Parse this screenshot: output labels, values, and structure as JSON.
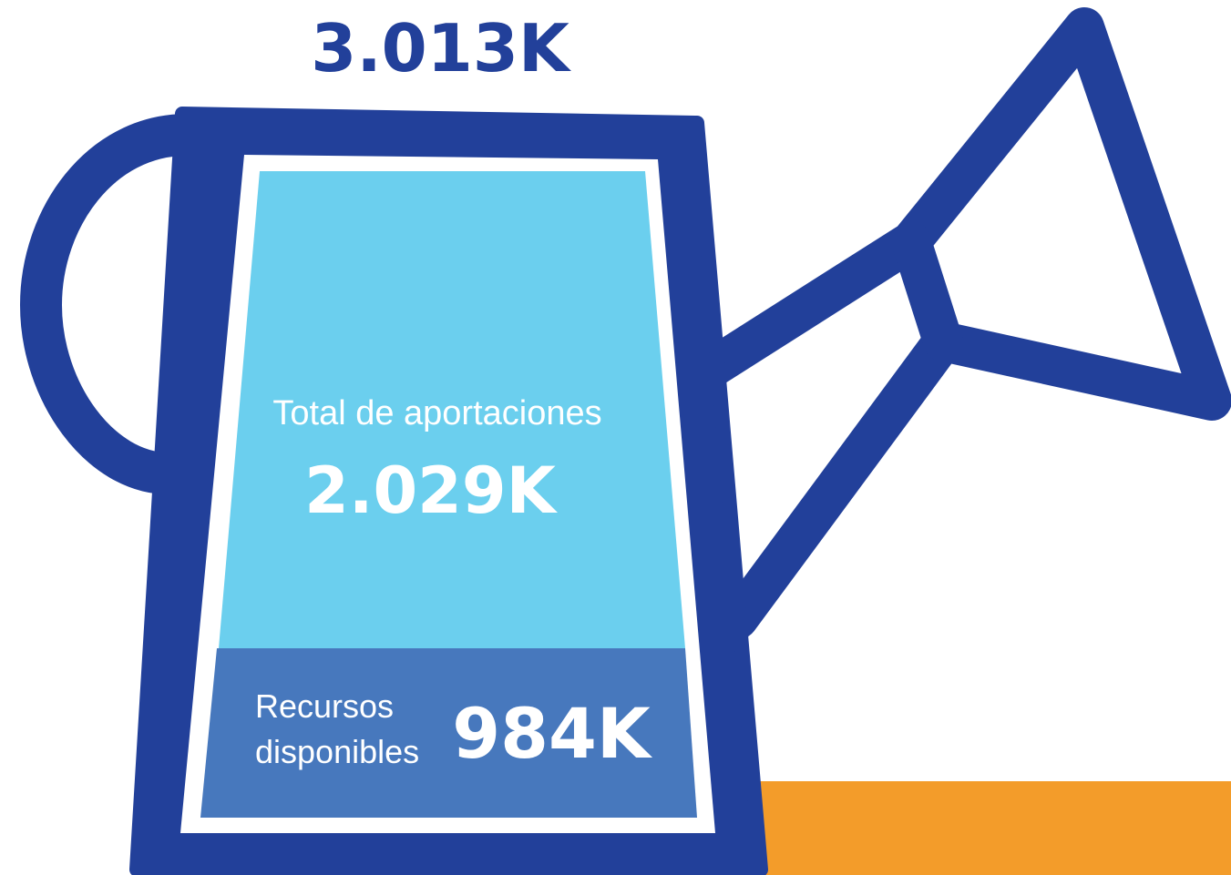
{
  "total": {
    "value": "3.013K"
  },
  "sections": [
    {
      "label": "Total de aportaciones",
      "value": "2.029K"
    },
    {
      "label_lines": [
        "Recursos",
        "disponibles"
      ],
      "value": "984K"
    }
  ]
}
